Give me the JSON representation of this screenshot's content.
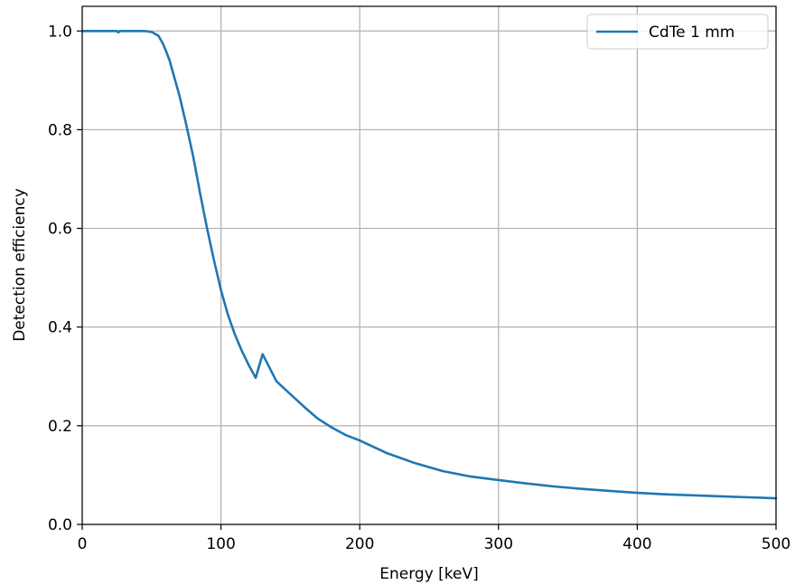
{
  "chart_data": {
    "type": "line",
    "title": "",
    "xlabel": "Energy [keV]",
    "ylabel": "Detection efficiency",
    "xlim": [
      0,
      500
    ],
    "ylim": [
      0,
      1.05
    ],
    "xticks": [
      0,
      100,
      200,
      300,
      400,
      500
    ],
    "xtick_labels": [
      "0",
      "100",
      "200",
      "300",
      "400",
      "500"
    ],
    "yticks": [
      0.0,
      0.2,
      0.4,
      0.6,
      0.8,
      1.0
    ],
    "ytick_labels": [
      "0.0",
      "0.2",
      "0.4",
      "0.6",
      "0.8",
      "1.0"
    ],
    "grid": true,
    "legend_position": "top-right",
    "series": [
      {
        "name": "CdTe 1 mm",
        "color": "#1f77b4",
        "x": [
          0,
          10,
          20,
          25,
          26,
          27,
          30,
          40,
          45,
          50,
          52,
          55,
          58,
          60,
          63,
          65,
          68,
          70,
          75,
          80,
          85,
          90,
          95,
          100,
          105,
          110,
          115,
          120,
          125,
          130,
          140,
          150,
          160,
          170,
          180,
          190,
          200,
          220,
          240,
          260,
          280,
          300,
          320,
          340,
          360,
          380,
          400,
          420,
          440,
          460,
          480,
          500
        ],
        "y": [
          1.0,
          1.0,
          1.0,
          1.0,
          0.997,
          1.0,
          1.0,
          1.0,
          1.0,
          0.998,
          0.995,
          0.99,
          0.975,
          0.962,
          0.94,
          0.92,
          0.89,
          0.87,
          0.81,
          0.745,
          0.67,
          0.6,
          0.535,
          0.475,
          0.425,
          0.385,
          0.352,
          0.323,
          0.297,
          0.345,
          0.29,
          0.264,
          0.238,
          0.214,
          0.196,
          0.181,
          0.17,
          0.144,
          0.124,
          0.108,
          0.097,
          0.09,
          0.083,
          0.077,
          0.072,
          0.068,
          0.064,
          0.061,
          0.059,
          0.057,
          0.055,
          0.053
        ]
      }
    ]
  }
}
